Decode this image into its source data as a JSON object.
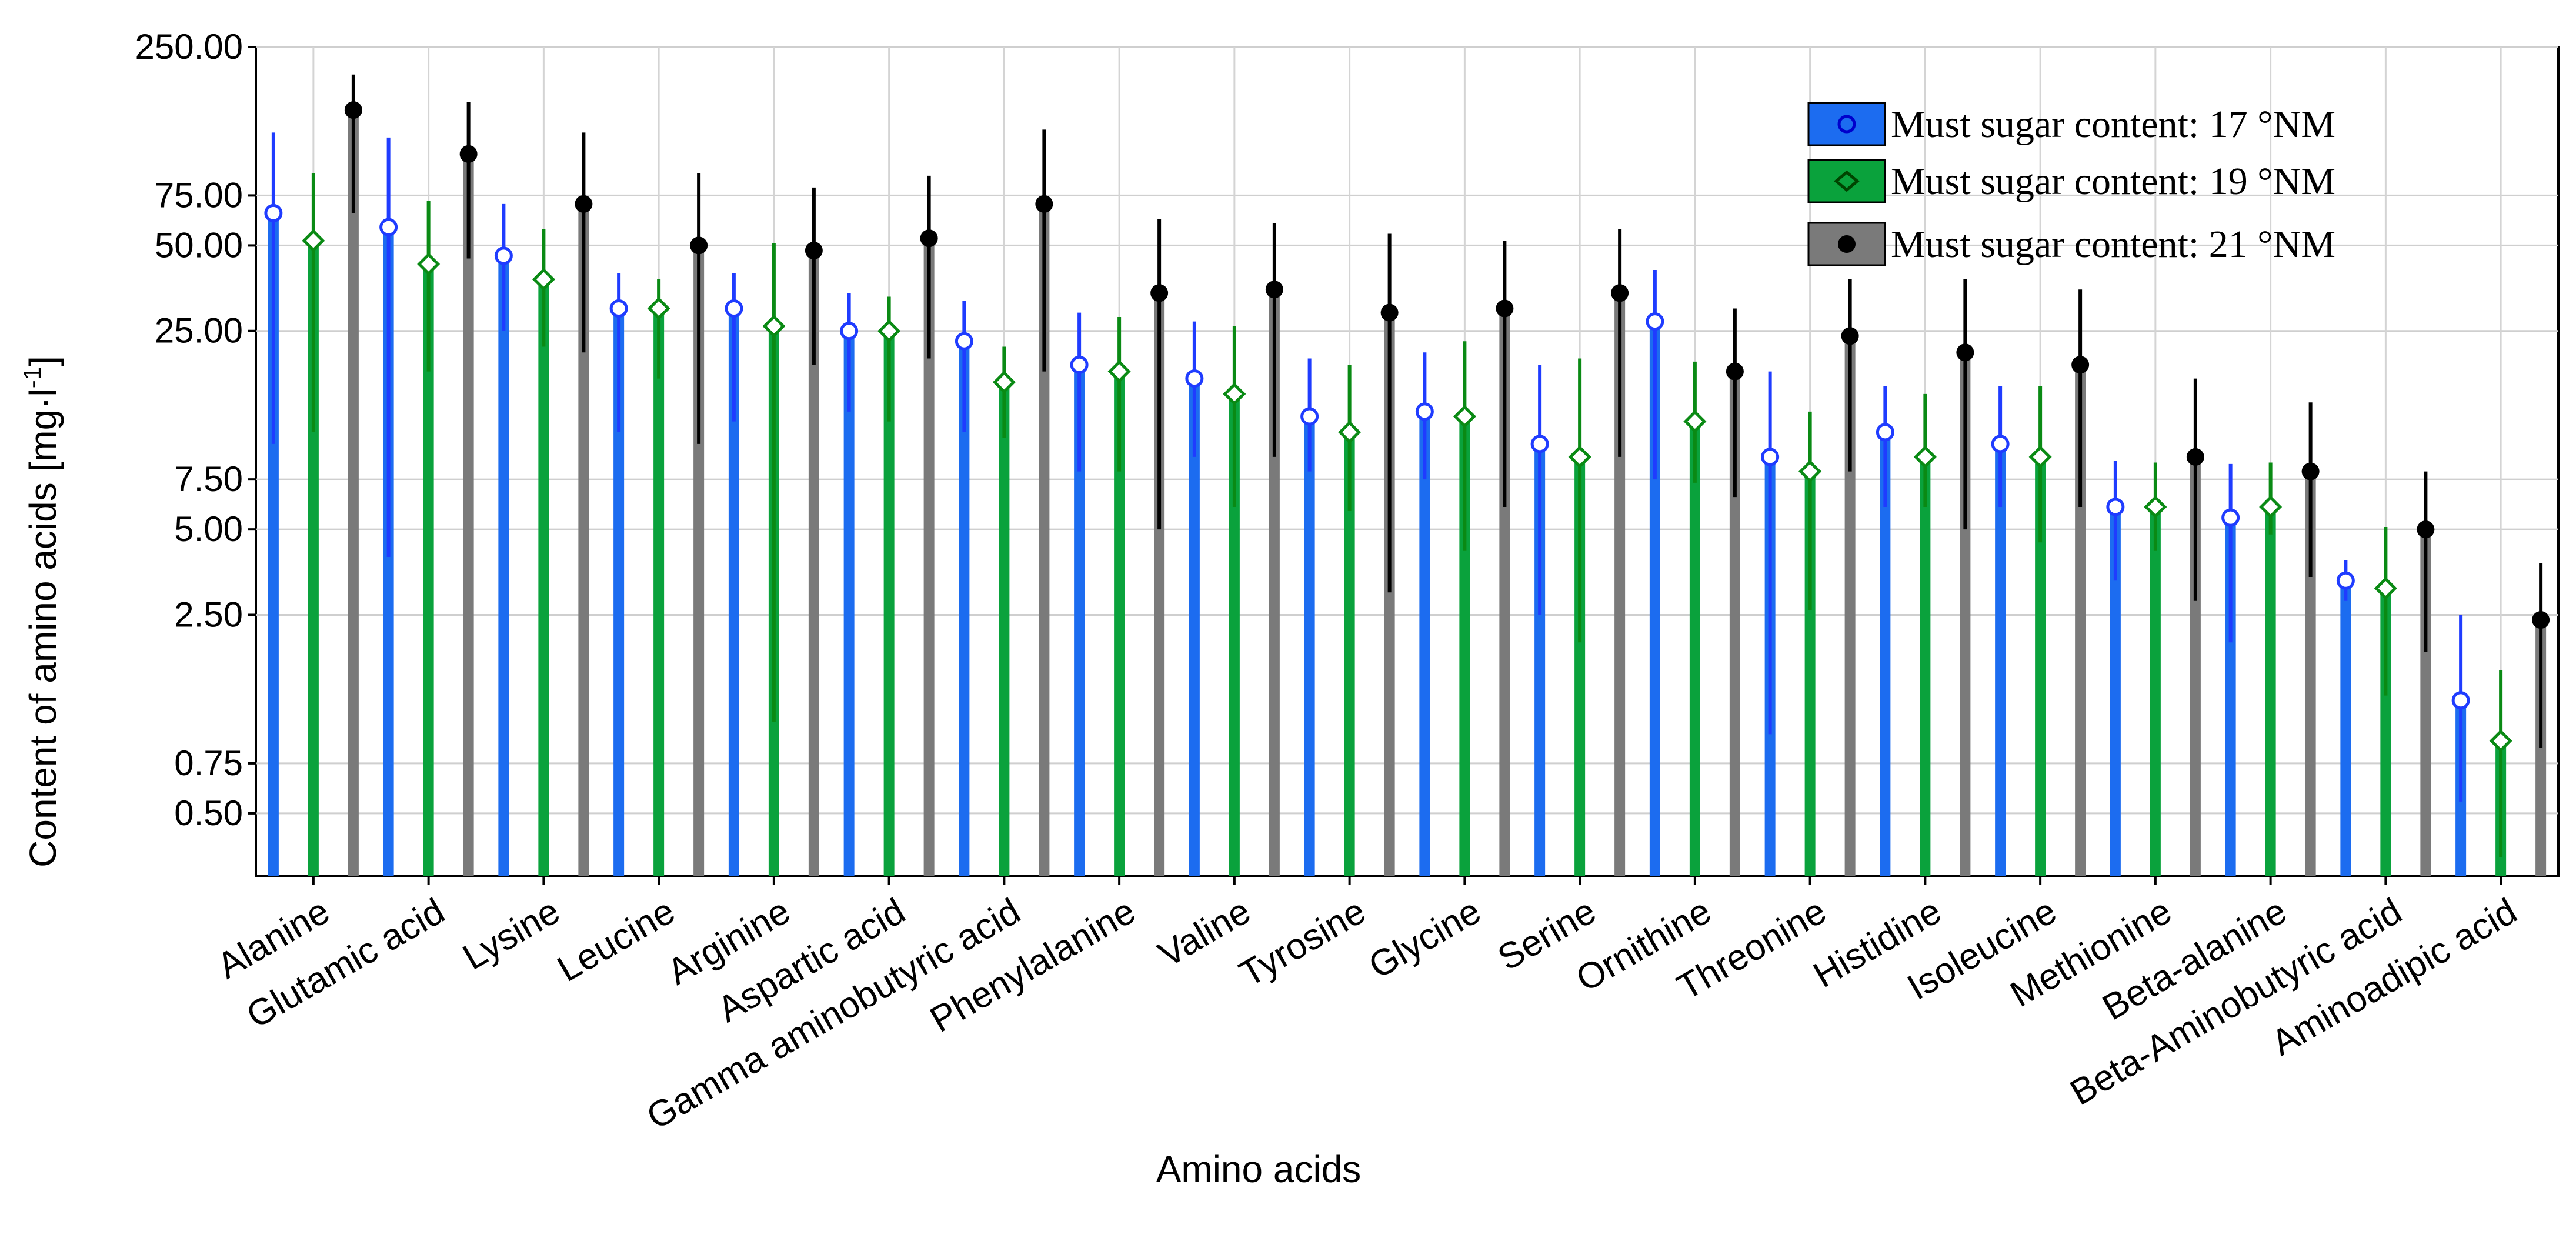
{
  "chart_data": {
    "type": "bar",
    "title": "",
    "xlabel": "Amino acids",
    "ylabel": "Content of amino acids [mg·l⁻¹]",
    "ylabel_main": "Content of amino acids [mg·l",
    "ylabel_sup": "-1",
    "ylabel_end": "]",
    "yscale": "log",
    "ylim": [
      0.3,
      250
    ],
    "yticks": [
      {
        "value": 250,
        "label": "250.00"
      },
      {
        "value": 75,
        "label": "75.00"
      },
      {
        "value": 50,
        "label": "50.00"
      },
      {
        "value": 25,
        "label": "25.00"
      },
      {
        "value": 7.5,
        "label": "7.50"
      },
      {
        "value": 5,
        "label": "5.00"
      },
      {
        "value": 2.5,
        "label": "2.50"
      },
      {
        "value": 0.75,
        "label": "0.75"
      },
      {
        "value": 0.5,
        "label": "0.50"
      }
    ],
    "grid": true,
    "legend_position": "top-right",
    "categories": [
      "Alanine",
      "Glutamic acid",
      "Lysine",
      "Leucine",
      "Arginine",
      "Aspartic acid",
      "Gamma aminobutyric acid",
      "Phenylalanine",
      "Valine",
      "Tyrosine",
      "Glycine",
      "Serine",
      "Ornithine",
      "Threonine",
      "Histidine",
      "Isoleucine",
      "Methionine",
      "Beta-alanine",
      "Beta-Aminobutyric acid",
      "Aminoadipic acid"
    ],
    "series": [
      {
        "name": "Must sugar content: 17 °NM",
        "color": "#1f3cff",
        "marker": "circle",
        "values": [
          65,
          58,
          46,
          30,
          30,
          25,
          23,
          19,
          17,
          12.5,
          13,
          10,
          27,
          9,
          11,
          10,
          6,
          5.5,
          3.3,
          1.25
        ],
        "upper": [
          125,
          120,
          70,
          40,
          40,
          34,
          32,
          29,
          27,
          20,
          21,
          19,
          41,
          18,
          16,
          16,
          8.7,
          8.5,
          3.9,
          2.5
        ],
        "lower": [
          10,
          4,
          25,
          11,
          12,
          13,
          11,
          8,
          9,
          8,
          7.5,
          2.5,
          7.5,
          0.95,
          6,
          6,
          3.3,
          2,
          2.8,
          0.55
        ]
      },
      {
        "name": "Must sugar content: 19 °NM",
        "color": "#0a8a14",
        "marker": "diamond",
        "values": [
          52,
          43,
          38,
          30,
          26,
          25,
          16.5,
          18,
          15,
          11,
          12.5,
          9,
          12,
          8,
          9,
          9,
          6,
          6,
          3.1,
          0.9
        ],
        "upper": [
          90,
          72,
          57,
          38,
          51,
          33,
          22,
          28,
          26,
          19,
          23,
          20,
          19.5,
          13,
          15,
          16,
          8.6,
          8.6,
          5.1,
          1.6
        ],
        "lower": [
          11,
          18,
          22,
          17,
          1.05,
          12,
          10.5,
          8,
          6,
          5.8,
          4.2,
          2,
          7.3,
          2.6,
          6,
          4.5,
          4.2,
          4.8,
          1.3,
          0.35
        ]
      },
      {
        "name": "Must sugar content: 21 °NM",
        "color": "#000000",
        "marker": "filled-circle",
        "values": [
          150,
          105,
          70,
          50,
          48,
          53,
          70,
          34,
          35,
          29,
          30,
          34,
          18,
          24,
          21,
          19,
          9,
          8,
          5,
          2.4
        ],
        "upper": [
          200,
          160,
          125,
          90,
          80,
          88,
          128,
          62,
          60,
          55,
          52,
          57,
          30,
          38,
          38,
          35,
          17,
          14,
          8,
          3.8
        ],
        "lower": [
          65,
          45,
          21,
          10,
          19,
          20,
          18,
          5,
          9,
          3,
          6,
          9,
          6.5,
          8,
          5,
          6,
          2.8,
          3.4,
          1.85,
          0.85
        ]
      }
    ]
  }
}
